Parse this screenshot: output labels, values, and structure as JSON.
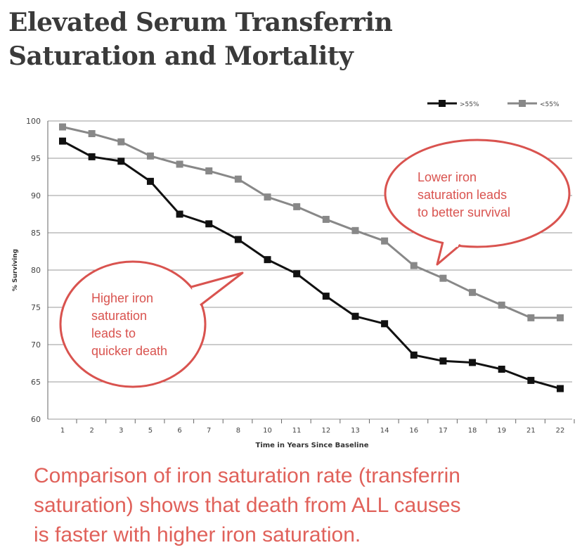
{
  "header": {
    "title_line1": "Elevated Serum Transferrin",
    "title_line2": "Saturation and Mortality"
  },
  "callouts": {
    "lower": [
      "Lower iron",
      "saturation leads",
      "to better survival"
    ],
    "higher": [
      "Higher iron",
      "saturation",
      "leads to",
      "quicker death"
    ]
  },
  "caption": {
    "line1": "Comparison of iron saturation rate (transferrin",
    "line2": "saturation) shows that death from ALL causes",
    "line3": "is faster with higher iron saturation."
  },
  "colors": {
    "high_series": "#111111",
    "low_series": "#888888",
    "callout": "#d9534f",
    "grid": "#9a9a9a"
  },
  "chart_data": {
    "type": "line",
    "title": "",
    "xlabel": "Time in Years Since Baseline",
    "ylabel": "% Surviving",
    "categories": [
      "1",
      "2",
      "3",
      "5",
      "6",
      "7",
      "8",
      "10",
      "11",
      "12",
      "13",
      "14",
      "16",
      "17",
      "18",
      "19",
      "21",
      "22"
    ],
    "ylim": [
      60,
      100
    ],
    "yticks": [
      60,
      65,
      70,
      75,
      80,
      85,
      90,
      95,
      100
    ],
    "grid": "horizontal",
    "legend_position": "top-right",
    "series": [
      {
        "name": ">55%",
        "values": [
          97.3,
          95.2,
          94.6,
          91.9,
          87.5,
          86.2,
          84.1,
          81.4,
          79.5,
          76.5,
          73.8,
          72.8,
          68.6,
          67.8,
          67.6,
          66.7,
          65.2,
          64.1
        ]
      },
      {
        "name": "<55%",
        "values": [
          99.2,
          98.3,
          97.2,
          95.3,
          94.2,
          93.3,
          92.2,
          89.8,
          88.5,
          86.8,
          85.3,
          83.9,
          80.6,
          78.9,
          77.0,
          75.3,
          73.6,
          73.6
        ]
      }
    ]
  }
}
